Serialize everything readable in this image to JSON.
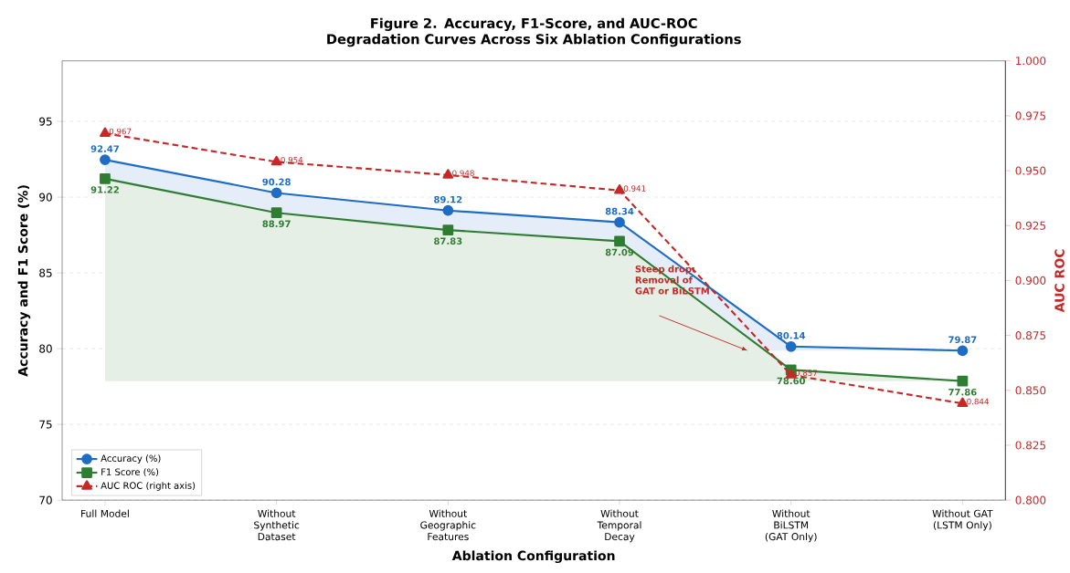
{
  "chart_data": {
    "type": "line",
    "title": "Figure 2. Accuracy, F1-Score, and AUC-ROC Degradation Curves Across Six Ablation Configurations",
    "xlabel": "Ablation Configuration",
    "ylabel": "Accuracy and F1 Score (%)",
    "y2label": "AUC ROC",
    "categories": [
      "Full Model",
      "Without Synthetic Dataset",
      "Without Geographic Features",
      "Without Temporal Decay",
      "Without BiLSTM (GAT Only)",
      "Without GAT (LSTM Only)"
    ],
    "series": [
      {
        "name": "Accuracy (%)",
        "color": "#1f6cc4",
        "marker": "circle",
        "line_style": "solid",
        "values": [
          92.47,
          90.28,
          89.12,
          88.34,
          80.14,
          79.87
        ],
        "value_labels": [
          "92.47",
          "90.28",
          "89.12",
          "88.34",
          "80.14",
          "79.87"
        ]
      },
      {
        "name": "F1 Score (%)",
        "color": "#2e7d32",
        "marker": "square",
        "line_style": "solid",
        "values": [
          91.22,
          88.97,
          87.83,
          87.09,
          78.6,
          77.86
        ],
        "value_labels": [
          "91.22",
          "88.97",
          "87.83",
          "87.09",
          "78.60",
          "77.86"
        ]
      },
      {
        "name": "AUC ROC (right axis)",
        "color": "#c62828",
        "marker": "triangle",
        "line_style": "dashed",
        "axis": "y2",
        "values": [
          0.967,
          0.954,
          0.948,
          0.941,
          0.857,
          0.844
        ],
        "value_labels": [
          "0.967",
          "0.954",
          "0.948",
          "0.941",
          "0.857",
          "0.844"
        ]
      }
    ],
    "ylim": [
      70,
      99
    ],
    "yticks": [
      70,
      75,
      80,
      85,
      90,
      95
    ],
    "y2lim": [
      0.8,
      1.0
    ],
    "y2ticks": [
      {
        "value": 0.8,
        "label": "0.800"
      },
      {
        "value": 0.825,
        "label": "0.825"
      },
      {
        "value": 0.85,
        "label": "0.850"
      },
      {
        "value": 0.875,
        "label": "0.875"
      },
      {
        "value": 0.9,
        "label": "0.900"
      },
      {
        "value": 0.925,
        "label": "0.925"
      },
      {
        "value": 0.95,
        "label": "0.950"
      },
      {
        "value": 0.975,
        "label": "0.975"
      },
      {
        "value": 1.0,
        "label": "1.000"
      }
    ],
    "annotations": [
      "Steep drop: Removal of GAT or BiLSTM"
    ],
    "grid": "y",
    "legend": "bottom left"
  }
}
